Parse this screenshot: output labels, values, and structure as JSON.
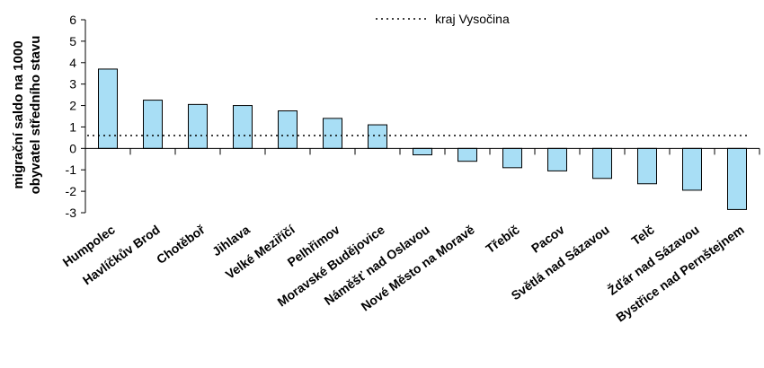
{
  "chart_data": {
    "type": "bar",
    "ylabel_line1": "migrační saldo na 1000",
    "ylabel_line2": "obyvatel středního stavu",
    "ylim": [
      -3,
      6
    ],
    "yticks": [
      -3,
      -2,
      -1,
      0,
      1,
      2,
      3,
      4,
      5,
      6
    ],
    "categories": [
      "Humpolec",
      "Havlíčkův Brod",
      "Chotěboř",
      "Jihlava",
      "Velké Meziříčí",
      "Pelhřimov",
      "Moravské Budějovice",
      "Náměšť nad Oslavou",
      "Nové Město na Moravě",
      "Třebíč",
      "Pacov",
      "Světlá nad Sázavou",
      "Telč",
      "Žďár nad Sázavou",
      "Bystřice nad Pernštejnem"
    ],
    "values": [
      3.7,
      2.25,
      2.05,
      2.0,
      1.75,
      1.4,
      1.1,
      -0.3,
      -0.6,
      -0.9,
      -1.05,
      -1.4,
      -1.65,
      -1.95,
      -2.85
    ],
    "reference_line": {
      "label": "kraj Vysočina",
      "value": 0.6,
      "style": "dotted"
    },
    "bar_color": "#a8def5",
    "bar_stroke": "#000000"
  }
}
